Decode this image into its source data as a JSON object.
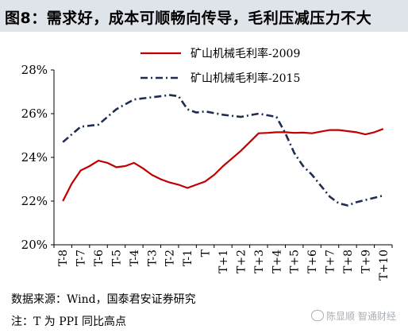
{
  "title": "图8：需求好，成本可顺畅向传导，毛利压减压力不大",
  "source_note": "数据来源：Wind，国泰君安证券研究",
  "footnote": "注：T 为 PPI 同比高点",
  "watermark": "陈显顺 智通财经",
  "chart_data": {
    "type": "line",
    "categories": [
      "T-8",
      "T-7",
      "T-6",
      "T-5",
      "T-4",
      "T-3",
      "T-2",
      "T-1",
      "T",
      "T+1",
      "T+2",
      "T+3",
      "T+4",
      "T+5",
      "T+6",
      "T+7",
      "T+8",
      "T+9",
      "T+10"
    ],
    "ylim": [
      20,
      28
    ],
    "yticks": [
      "20%",
      "22%",
      "24%",
      "26%",
      "28%"
    ],
    "grid": false,
    "legend_position": "top-center",
    "series": [
      {
        "name": "矿山机械毛利率-2009",
        "color": "#c00000",
        "style": "solid",
        "x": [
          0,
          0.5,
          1,
          1.5,
          2,
          2.5,
          3,
          3.5,
          4,
          4.5,
          5,
          5.5,
          6,
          6.5,
          7,
          7.5,
          8,
          8.5,
          9,
          9.5,
          10,
          10.5,
          11,
          11.5,
          12,
          12.5,
          13,
          13.5,
          14,
          14.5,
          15,
          15.5,
          16,
          16.5,
          17,
          17.5,
          18
        ],
        "values": [
          22.0,
          22.8,
          23.4,
          23.6,
          23.85,
          23.75,
          23.55,
          23.6,
          23.75,
          23.5,
          23.2,
          23.0,
          22.85,
          22.75,
          22.6,
          22.75,
          22.9,
          23.2,
          23.6,
          23.95,
          24.3,
          24.7,
          25.1,
          25.12,
          25.15,
          25.15,
          25.12,
          25.13,
          25.1,
          25.18,
          25.25,
          25.25,
          25.2,
          25.15,
          25.05,
          25.15,
          25.3
        ]
      },
      {
        "name": "矿山机械毛利率-2015",
        "color": "#1f2d4e",
        "style": "dashdot",
        "x": [
          0,
          1,
          2,
          3,
          4,
          5,
          6,
          6.5,
          7,
          7.5,
          8,
          9,
          10,
          11,
          12,
          12.5,
          13,
          13.5,
          14,
          14.5,
          15,
          15.5,
          16,
          16.5,
          17,
          17.5,
          18
        ],
        "values": [
          24.7,
          25.4,
          25.5,
          26.2,
          26.65,
          26.75,
          26.85,
          26.8,
          26.2,
          26.05,
          26.1,
          25.95,
          25.85,
          26.0,
          25.85,
          25.1,
          24.2,
          23.6,
          23.2,
          22.7,
          22.2,
          21.9,
          21.8,
          21.95,
          22.05,
          22.15,
          22.25
        ]
      }
    ]
  }
}
